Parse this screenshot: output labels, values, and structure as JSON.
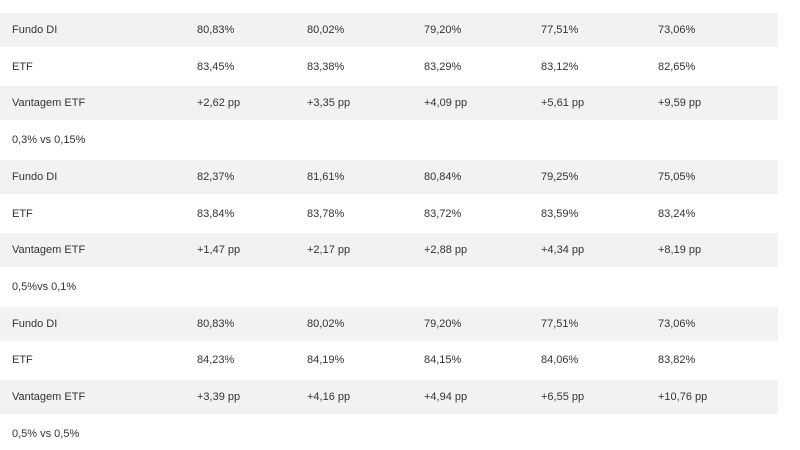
{
  "table": {
    "rows": [
      [
        "Fundo DI",
        "80,83%",
        "80,02%",
        "79,20%",
        "77,51%",
        "73,06%"
      ],
      [
        "ETF",
        "83,45%",
        "83,38%",
        "83,29%",
        "83,12%",
        "82,65%"
      ],
      [
        "Vantagem ETF",
        "+2,62 pp",
        "+3,35 pp",
        "+4,09 pp",
        "+5,61 pp",
        "+9,59 pp"
      ],
      [
        "0,3% vs 0,15%"
      ],
      [
        "Fundo DI",
        "82,37%",
        "81,61%",
        "80,84%",
        "79,25%",
        "75,05%"
      ],
      [
        "ETF",
        "83,84%",
        "83,78%",
        "83,72%",
        "83,59%",
        "83,24%"
      ],
      [
        "Vantagem ETF",
        "+1,47 pp",
        "+2,17 pp",
        "+2,88 pp",
        "+4,34 pp",
        "+8,19 pp"
      ],
      [
        "0,5%vs 0,1%"
      ],
      [
        "Fundo DI",
        "80,83%",
        "80,02%",
        "79,20%",
        "77,51%",
        "73,06%"
      ],
      [
        "ETF",
        "84,23%",
        "84,19%",
        "84,15%",
        "84,06%",
        "83,82%"
      ],
      [
        "Vantagem ETF",
        "+3,39 pp",
        "+4,16 pp",
        "+4,94 pp",
        "+6,55 pp",
        "+10,76 pp"
      ],
      [
        "0,5% vs 0,5%"
      ]
    ]
  }
}
